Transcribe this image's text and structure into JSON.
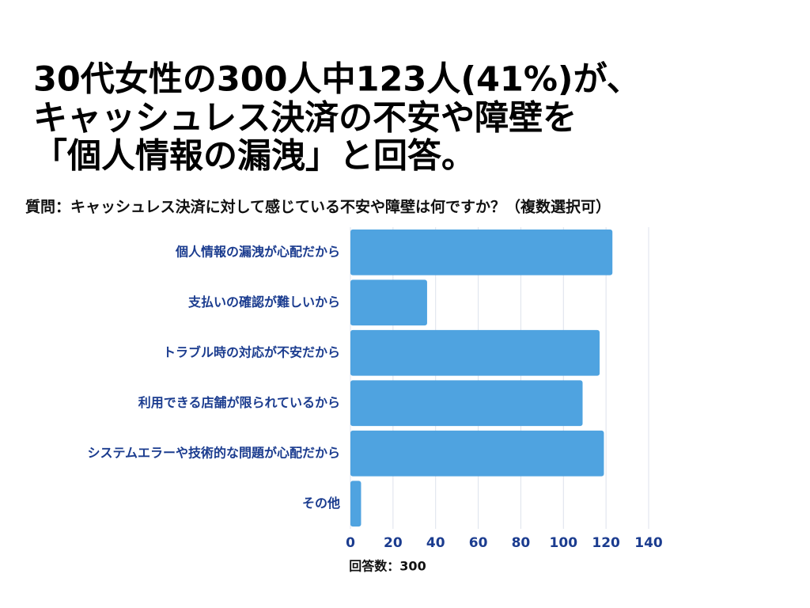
{
  "chart_data": {
    "type": "barh",
    "title": [
      "30代女性の300人中123人(41%)が、",
      "キャッシュレス決済の不安や障壁を",
      "「個人情報の漏洩」と回答。"
    ],
    "subtitle": "質問：キャッシュレス決済に対して感じている不安や障壁は何ですか？（複数選択可）",
    "x_label": "回答数：300",
    "categories": [
      "個人情報の漏洩が心配だから",
      "支払いの確認が難しいから",
      "トラブル時の対応が不安だから",
      "利用できる店舗が限られているから",
      "システムエラーや技術的な問題が心配だから",
      "その他"
    ],
    "values": [
      123,
      36,
      117,
      109,
      119,
      5
    ],
    "color": "#4fa3e0",
    "xlim": [
      0,
      140
    ],
    "xticks": [
      0,
      20,
      40,
      60,
      80,
      100,
      120,
      140
    ],
    "grid": true
  }
}
